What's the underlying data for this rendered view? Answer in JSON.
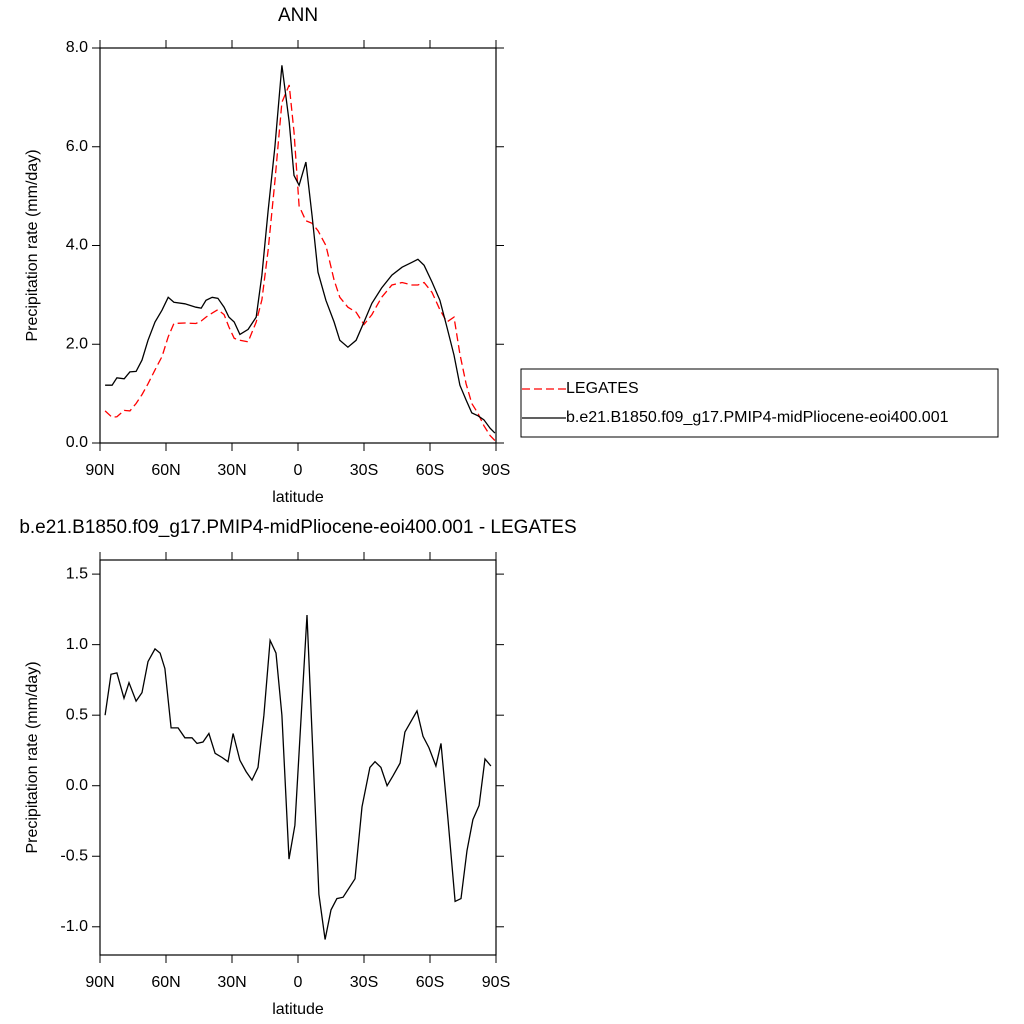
{
  "chart_data": [
    {
      "type": "line",
      "title": "ANN",
      "xlabel": "latitude",
      "ylabel": "Precipitation rate (mm/day)",
      "xlim": [
        90,
        -90
      ],
      "ylim": [
        0,
        8
      ],
      "xticks": [
        {
          "value": 90,
          "label": "90N"
        },
        {
          "value": 60,
          "label": "60N"
        },
        {
          "value": 30,
          "label": "30N"
        },
        0,
        {
          "value": -30,
          "label": "30S"
        },
        {
          "value": -60,
          "label": "60S"
        },
        {
          "value": -90,
          "label": "90S"
        }
      ],
      "yticks": [
        {
          "value": 0,
          "label": "0.0"
        },
        {
          "value": 2,
          "label": "2.0"
        },
        {
          "value": 4,
          "label": "4.0"
        },
        {
          "value": 6,
          "label": "6.0"
        },
        {
          "value": 8,
          "label": "8.0"
        }
      ],
      "legend": "right",
      "x": [
        87.7,
        84.5,
        82.3,
        79,
        76.4,
        73.6,
        70.9,
        68.2,
        65,
        61.8,
        59,
        56.4,
        51.4,
        46.4,
        44,
        41.8,
        39,
        36.4,
        33.6,
        31.4,
        29,
        26.4,
        22.7,
        19,
        16.4,
        13.6,
        10.5,
        7.3,
        4,
        1.8,
        -0.5,
        -3.6,
        -6.4,
        -9.1,
        -12.7,
        -16.4,
        -19,
        -22.7,
        -26.4,
        -30,
        -33.6,
        -38,
        -42.7,
        -47.3,
        -51.8,
        -54.5,
        -57.3,
        -60.9,
        -64.5,
        -67.7,
        -70.9,
        -73.6,
        -76.4,
        -79,
        -81.8,
        -84.5,
        -87.3,
        -89.5
      ],
      "series": [
        {
          "name": "LEGATES",
          "color": "#ff0000",
          "line_style": "dashed",
          "values": [
            0.65,
            0.52,
            0.53,
            0.66,
            0.65,
            0.8,
            0.98,
            1.2,
            1.48,
            1.75,
            2.15,
            2.42,
            2.43,
            2.42,
            2.47,
            2.55,
            2.63,
            2.7,
            2.6,
            2.35,
            2.12,
            2.08,
            2.05,
            2.45,
            2.9,
            3.9,
            5.3,
            6.9,
            7.25,
            6.3,
            4.8,
            4.5,
            4.45,
            4.3,
            4.0,
            3.3,
            2.95,
            2.75,
            2.65,
            2.4,
            2.6,
            2.95,
            3.2,
            3.25,
            3.2,
            3.2,
            3.25,
            3.05,
            2.7,
            2.45,
            2.55,
            1.8,
            1.2,
            0.8,
            0.6,
            0.35,
            0.15,
            0.05
          ]
        },
        {
          "name": "b.e21.B1850.f09_g17.PMIP4-midPliocene-eoi400.001",
          "color": "#000000",
          "line_style": "solid",
          "values": [
            1.17,
            1.17,
            1.32,
            1.3,
            1.44,
            1.45,
            1.68,
            2.08,
            2.45,
            2.69,
            2.95,
            2.85,
            2.82,
            2.75,
            2.73,
            2.89,
            2.95,
            2.93,
            2.75,
            2.55,
            2.45,
            2.2,
            2.3,
            2.55,
            3.4,
            4.7,
            6.0,
            7.65,
            6.5,
            5.42,
            5.22,
            5.69,
            4.6,
            3.46,
            2.89,
            2.45,
            2.08,
            1.94,
            2.08,
            2.45,
            2.83,
            3.14,
            3.4,
            3.56,
            3.66,
            3.72,
            3.6,
            3.26,
            2.89,
            2.35,
            1.78,
            1.17,
            0.87,
            0.61,
            0.55,
            0.47,
            0.3,
            0.2
          ]
        }
      ]
    },
    {
      "type": "line",
      "title": "b.e21.B1850.f09_g17.PMIP4-midPliocene-eoi400.001 - LEGATES",
      "xlabel": "latitude",
      "ylabel": "Precipitation rate (mm/day)",
      "xlim": [
        90,
        -90
      ],
      "ylim": [
        -1.2,
        1.6
      ],
      "xticks": [
        {
          "value": 90,
          "label": "90N"
        },
        {
          "value": 60,
          "label": "60N"
        },
        {
          "value": 30,
          "label": "30N"
        },
        0,
        {
          "value": -30,
          "label": "30S"
        },
        {
          "value": -60,
          "label": "60S"
        },
        {
          "value": -90,
          "label": "90S"
        }
      ],
      "yticks": [
        {
          "value": -1,
          "label": "-1.0"
        },
        -0.5,
        {
          "value": 0,
          "label": "0.0"
        },
        0.5,
        {
          "value": 1,
          "label": "1.0"
        },
        1.5
      ],
      "color": "#000000",
      "x": [
        87.7,
        85,
        82.3,
        79.1,
        76.8,
        73.6,
        70.9,
        68.2,
        65,
        62.7,
        60.5,
        57.7,
        54.5,
        51.4,
        48.2,
        45.9,
        43.2,
        40.5,
        37.7,
        34.5,
        31.8,
        29.5,
        26.4,
        23.6,
        20.9,
        18.2,
        15.5,
        12.7,
        10,
        7.3,
        4.1,
        1.4,
        -4.1,
        -9.5,
        -12.3,
        -15,
        -17.7,
        -20.5,
        -25.9,
        -29.1,
        -32.7,
        -35,
        -37.7,
        -40.5,
        -43.2,
        -46.4,
        -48.6,
        -54.1,
        -56.8,
        -59.5,
        -62.7,
        -65,
        -68.2,
        -71.4,
        -74.1,
        -76.8,
        -79.5,
        -82.3,
        -85,
        -87.7
      ],
      "values": [
        0.5,
        0.79,
        0.8,
        0.62,
        0.73,
        0.6,
        0.66,
        0.88,
        0.97,
        0.94,
        0.83,
        0.41,
        0.41,
        0.34,
        0.34,
        0.3,
        0.31,
        0.37,
        0.23,
        0.2,
        0.17,
        0.37,
        0.18,
        0.1,
        0.04,
        0.13,
        0.5,
        1.03,
        0.94,
        0.5,
        -0.52,
        -0.28,
        1.21,
        -0.77,
        -1.09,
        -0.88,
        -0.8,
        -0.79,
        -0.66,
        -0.15,
        0.13,
        0.17,
        0.13,
        0,
        0.07,
        0.16,
        0.38,
        0.53,
        0.35,
        0.27,
        0.14,
        0.3,
        -0.24,
        -0.82,
        -0.8,
        -0.46,
        -0.24,
        -0.14,
        0.19,
        0.14
      ]
    }
  ]
}
